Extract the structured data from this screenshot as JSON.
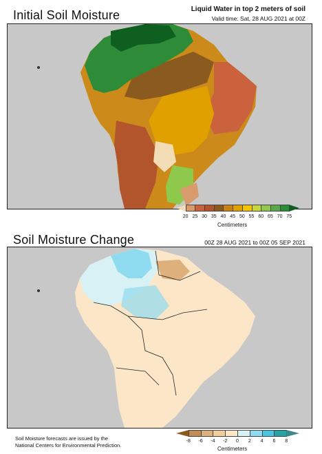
{
  "top": {
    "title": "Initial Soil Moisture",
    "subtitle": "Liquid Water in top 2 meters of soil",
    "valid_time": "Valid time: Sat, 28 AUG 2021 at 00Z",
    "colorbar": {
      "ticks": [
        "20",
        "25",
        "30",
        "35",
        "40",
        "45",
        "50",
        "55",
        "60",
        "65",
        "70",
        "75"
      ],
      "colors": [
        "#f2dcb5",
        "#d99a6c",
        "#c9623d",
        "#b2552d",
        "#8b5a1e",
        "#c8820f",
        "#e0a000",
        "#f2c300",
        "#c6d83a",
        "#8fc94b",
        "#5aa84a",
        "#2e8b37",
        "#0f5f21"
      ],
      "unit": "Centimeters"
    }
  },
  "bottom": {
    "title": "Soil Moisture Change",
    "period": "00Z 28 AUG 2021 to 00Z 05 SEP 2021",
    "colorbar": {
      "ticks": [
        "-8",
        "-6",
        "-4",
        "-2",
        "0",
        "2",
        "4",
        "6",
        "8"
      ],
      "colors": [
        "#8b5a1e",
        "#c48b52",
        "#deb07b",
        "#f1cd9b",
        "#fbe6c8",
        "#d8f1f5",
        "#8fdcf0",
        "#4ac6e0",
        "#27a3a5",
        "#3a8a8e"
      ],
      "unit": "Centimeters"
    }
  },
  "footer": {
    "line1": "Soil Moisture forecasts are issued by the",
    "line2": "National Centers for Environmental Prediction."
  }
}
